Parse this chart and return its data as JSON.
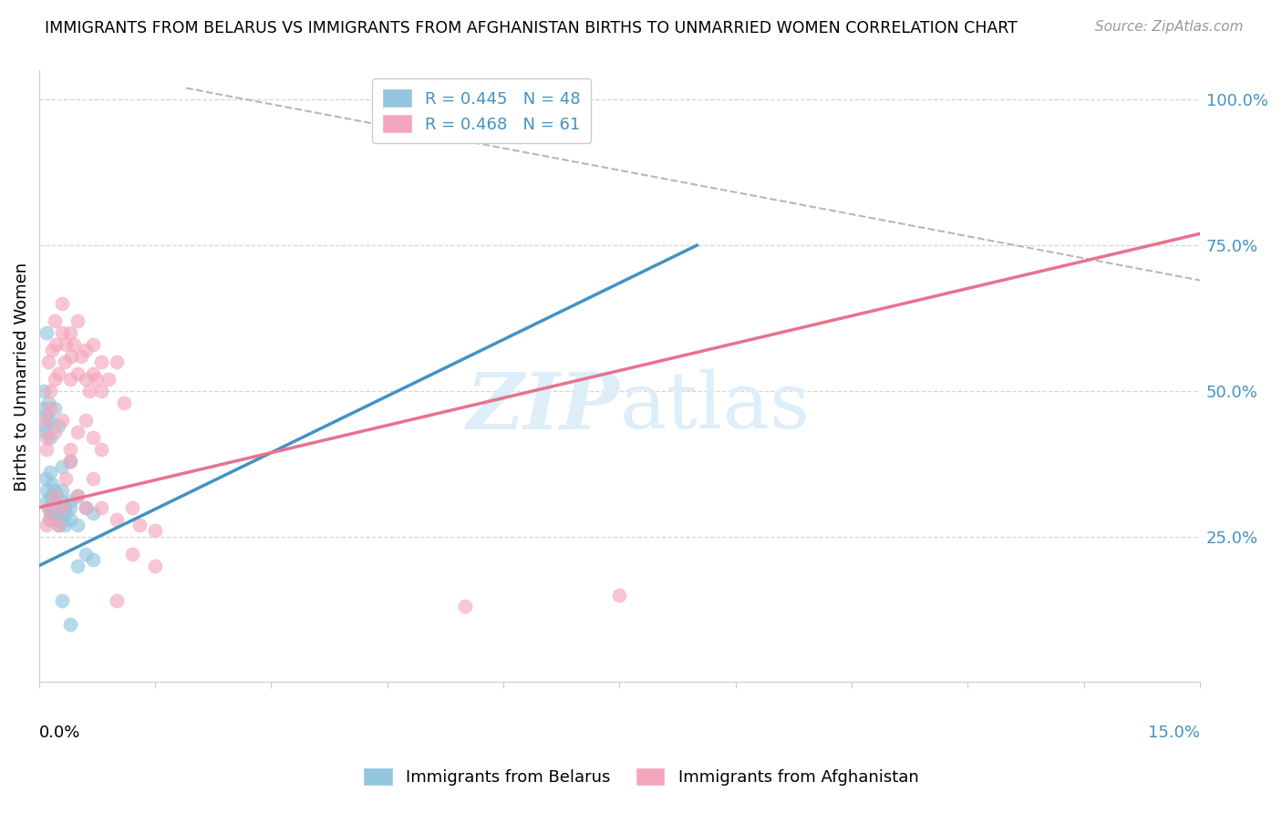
{
  "title": "IMMIGRANTS FROM BELARUS VS IMMIGRANTS FROM AFGHANISTAN BIRTHS TO UNMARRIED WOMEN CORRELATION CHART",
  "source": "Source: ZipAtlas.com",
  "ylabel": "Births to Unmarried Women",
  "legend1_label": "R = 0.445   N = 48",
  "legend2_label": "R = 0.468   N = 61",
  "legend_bottom1": "Immigrants from Belarus",
  "legend_bottom2": "Immigrants from Afghanistan",
  "blue_color": "#92c5de",
  "pink_color": "#f4a6bc",
  "blue_line_color": "#4393c3",
  "pink_line_color": "#e8728e",
  "dashed_line_color": "#b0b0b0",
  "watermark_color": "#ddeef8",
  "xlim": [
    0.0,
    0.15
  ],
  "ylim": [
    0.0,
    1.05
  ],
  "blue_line_x": [
    0.0,
    0.085
  ],
  "blue_line_y": [
    0.2,
    0.75
  ],
  "pink_line_x": [
    0.0,
    0.15
  ],
  "pink_line_y": [
    0.3,
    0.77
  ],
  "dash_line_x": [
    0.019,
    0.15
  ],
  "dash_line_y": [
    1.02,
    0.69
  ],
  "belarus_x": [
    0.0008,
    0.001,
    0.001,
    0.0012,
    0.0013,
    0.0015,
    0.0015,
    0.0016,
    0.0017,
    0.0018,
    0.002,
    0.002,
    0.002,
    0.0022,
    0.0023,
    0.0025,
    0.0027,
    0.003,
    0.003,
    0.003,
    0.0032,
    0.0033,
    0.0035,
    0.004,
    0.004,
    0.004,
    0.005,
    0.005,
    0.006,
    0.007,
    0.0005,
    0.0006,
    0.0007,
    0.0008,
    0.001,
    0.001,
    0.0012,
    0.0013,
    0.0015,
    0.002,
    0.0025,
    0.003,
    0.004,
    0.005,
    0.006,
    0.007,
    0.003,
    0.004
  ],
  "belarus_y": [
    0.35,
    0.33,
    0.31,
    0.3,
    0.28,
    0.36,
    0.29,
    0.32,
    0.34,
    0.3,
    0.33,
    0.29,
    0.31,
    0.28,
    0.32,
    0.27,
    0.3,
    0.33,
    0.28,
    0.31,
    0.3,
    0.27,
    0.29,
    0.31,
    0.28,
    0.3,
    0.32,
    0.27,
    0.3,
    0.29,
    0.47,
    0.5,
    0.44,
    0.43,
    0.46,
    0.6,
    0.48,
    0.45,
    0.42,
    0.47,
    0.44,
    0.37,
    0.38,
    0.2,
    0.22,
    0.21,
    0.14,
    0.1
  ],
  "afghanistan_x": [
    0.001,
    0.0012,
    0.0015,
    0.0017,
    0.002,
    0.002,
    0.0022,
    0.0025,
    0.003,
    0.003,
    0.0033,
    0.0035,
    0.004,
    0.004,
    0.0042,
    0.0045,
    0.005,
    0.005,
    0.0055,
    0.006,
    0.006,
    0.0065,
    0.007,
    0.007,
    0.0075,
    0.008,
    0.008,
    0.009,
    0.01,
    0.011,
    0.001,
    0.0012,
    0.0015,
    0.002,
    0.0025,
    0.003,
    0.0035,
    0.004,
    0.005,
    0.006,
    0.007,
    0.008,
    0.01,
    0.012,
    0.013,
    0.015,
    0.055,
    0.075,
    0.0008,
    0.001,
    0.0015,
    0.002,
    0.003,
    0.004,
    0.005,
    0.006,
    0.007,
    0.008,
    0.01,
    0.012,
    0.015
  ],
  "afghanistan_y": [
    0.4,
    0.55,
    0.5,
    0.57,
    0.52,
    0.62,
    0.58,
    0.53,
    0.6,
    0.65,
    0.55,
    0.58,
    0.52,
    0.6,
    0.56,
    0.58,
    0.53,
    0.62,
    0.56,
    0.52,
    0.57,
    0.5,
    0.53,
    0.58,
    0.52,
    0.55,
    0.5,
    0.52,
    0.55,
    0.48,
    0.27,
    0.3,
    0.28,
    0.32,
    0.27,
    0.3,
    0.35,
    0.38,
    0.32,
    0.3,
    0.35,
    0.3,
    0.28,
    0.22,
    0.27,
    0.2,
    0.13,
    0.15,
    0.45,
    0.42,
    0.47,
    0.43,
    0.45,
    0.4,
    0.43,
    0.45,
    0.42,
    0.4,
    0.14,
    0.3,
    0.26
  ]
}
